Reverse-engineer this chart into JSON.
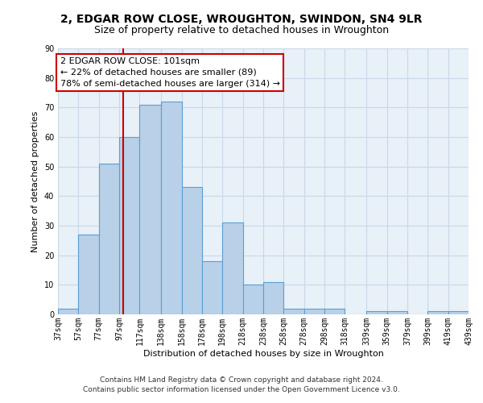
{
  "title1": "2, EDGAR ROW CLOSE, WROUGHTON, SWINDON, SN4 9LR",
  "title2": "Size of property relative to detached houses in Wroughton",
  "xlabel": "Distribution of detached houses by size in Wroughton",
  "ylabel": "Number of detached properties",
  "footnote1": "Contains HM Land Registry data © Crown copyright and database right 2024.",
  "footnote2": "Contains public sector information licensed under the Open Government Licence v3.0.",
  "bar_left_edges": [
    37,
    57,
    77,
    97,
    117,
    138,
    158,
    178,
    198,
    218,
    238,
    258,
    278,
    298,
    318,
    339,
    359,
    379,
    399,
    419
  ],
  "bar_widths": [
    20,
    20,
    20,
    20,
    21,
    20,
    20,
    20,
    20,
    20,
    20,
    20,
    20,
    20,
    21,
    20,
    20,
    20,
    20,
    20
  ],
  "bar_heights": [
    2,
    27,
    51,
    60,
    71,
    72,
    43,
    18,
    31,
    10,
    11,
    2,
    2,
    2,
    0,
    1,
    1,
    0,
    1,
    1
  ],
  "bar_color": "#b8d0e8",
  "bar_edge_color": "#5a9fd4",
  "bar_edge_width": 0.8,
  "vline_x": 101,
  "vline_color": "#cc0000",
  "annotation_text": "2 EDGAR ROW CLOSE: 101sqm\n← 22% of detached houses are smaller (89)\n78% of semi-detached houses are larger (314) →",
  "annotation_box_color": "#cc0000",
  "ylim": [
    0,
    90
  ],
  "xlim": [
    37,
    439
  ],
  "yticks": [
    0,
    10,
    20,
    30,
    40,
    50,
    60,
    70,
    80,
    90
  ],
  "xtick_labels": [
    "37sqm",
    "57sqm",
    "77sqm",
    "97sqm",
    "117sqm",
    "138sqm",
    "158sqm",
    "178sqm",
    "198sqm",
    "218sqm",
    "238sqm",
    "258sqm",
    "278sqm",
    "298sqm",
    "318sqm",
    "339sqm",
    "359sqm",
    "379sqm",
    "399sqm",
    "419sqm",
    "439sqm"
  ],
  "xtick_positions": [
    37,
    57,
    77,
    97,
    117,
    138,
    158,
    178,
    198,
    218,
    238,
    258,
    278,
    298,
    318,
    339,
    359,
    379,
    399,
    419,
    439
  ],
  "grid_color": "#c8d8e8",
  "bg_color": "#e8f0f8",
  "title_fontsize": 10,
  "subtitle_fontsize": 9,
  "axis_label_fontsize": 8,
  "tick_fontsize": 7,
  "annot_fontsize": 8,
  "footnote_fontsize": 6.5
}
